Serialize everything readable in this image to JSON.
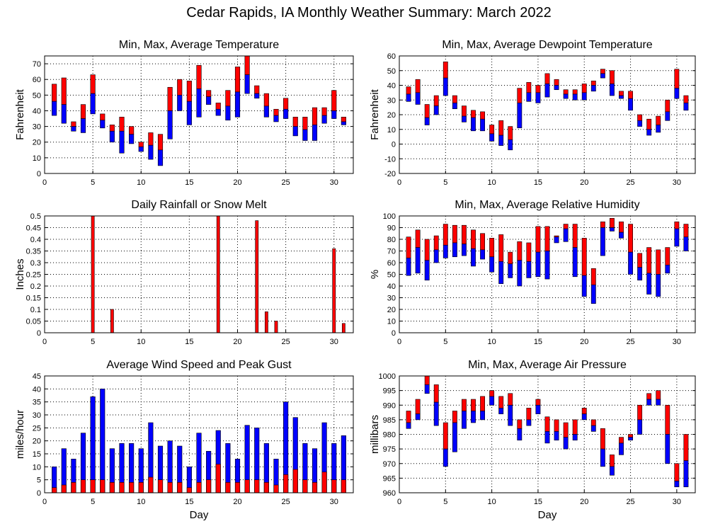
{
  "title": "Cedar Rapids, IA Monthly Weather Summary: March 2022",
  "colors": {
    "red": "#ff0000",
    "blue": "#0000ff",
    "outline": "#000000"
  },
  "chart_data": [
    {
      "id": "temperature",
      "type": "bar",
      "title": "Min, Max, Average Temperature",
      "ylabel": "Fahrenheit",
      "xlabel": "",
      "xlim": [
        0,
        32
      ],
      "xticks": [
        0,
        5,
        10,
        15,
        20,
        25,
        30
      ],
      "ylim": [
        0,
        75
      ],
      "yticks": [
        0,
        10,
        20,
        30,
        40,
        50,
        60,
        70
      ],
      "x": [
        1,
        2,
        3,
        4,
        5,
        6,
        7,
        8,
        9,
        10,
        11,
        12,
        13,
        14,
        15,
        16,
        17,
        18,
        19,
        20,
        21,
        22,
        23,
        24,
        25,
        26,
        27,
        28,
        29,
        30,
        31
      ],
      "min": [
        37,
        32,
        27,
        26,
        38,
        29,
        20,
        13,
        19,
        14,
        9,
        5,
        22,
        40,
        31,
        36,
        44,
        37,
        34,
        36,
        51,
        48,
        36,
        33,
        35,
        24,
        21,
        21,
        32,
        35,
        31
      ],
      "avg": [
        46,
        44,
        30,
        35,
        51,
        34,
        27,
        27,
        25,
        17,
        18,
        15,
        40,
        50,
        46,
        54,
        49,
        41,
        43,
        52,
        63,
        51,
        43,
        37,
        41,
        30,
        28,
        31,
        37,
        40,
        33
      ],
      "max": [
        57,
        61,
        33,
        44,
        63,
        38,
        31,
        36,
        30,
        20,
        26,
        25,
        55,
        60,
        59,
        69,
        53,
        45,
        53,
        68,
        75,
        56,
        51,
        41,
        48,
        36,
        36,
        42,
        42,
        53,
        36
      ],
      "style": "range"
    },
    {
      "id": "dewpoint",
      "type": "bar",
      "title": "Min, Max, Average Dewpoint Temperature",
      "ylabel": "Fahrenheit",
      "xlabel": "",
      "xlim": [
        0,
        32
      ],
      "xticks": [
        0,
        5,
        10,
        15,
        20,
        25,
        30
      ],
      "ylim": [
        -20,
        60
      ],
      "yticks": [
        -20,
        -10,
        0,
        10,
        20,
        30,
        40,
        50,
        60
      ],
      "x": [
        1,
        2,
        3,
        4,
        5,
        6,
        7,
        8,
        9,
        10,
        11,
        12,
        13,
        14,
        15,
        16,
        17,
        18,
        19,
        20,
        21,
        22,
        23,
        24,
        25,
        26,
        27,
        28,
        29,
        30,
        31
      ],
      "min": [
        29,
        27,
        13,
        20,
        33,
        24,
        15,
        9,
        9,
        2,
        -1,
        -4,
        11,
        29,
        28,
        32,
        37,
        31,
        30,
        30,
        36,
        45,
        33,
        31,
        23,
        12,
        6,
        8,
        16,
        31,
        23
      ],
      "avg": [
        34,
        35,
        18,
        26,
        45,
        28,
        19,
        18,
        17,
        7,
        6,
        3,
        28,
        35,
        35,
        41,
        40,
        34,
        34,
        35,
        40,
        48,
        41,
        33,
        31,
        16,
        10,
        13,
        22,
        38,
        28
      ],
      "max": [
        39,
        44,
        27,
        33,
        56,
        33,
        26,
        23,
        22,
        13,
        16,
        12,
        38,
        42,
        40,
        48,
        44,
        37,
        37,
        41,
        43,
        51,
        50,
        36,
        36,
        20,
        17,
        19,
        30,
        51,
        33
      ],
      "style": "range"
    },
    {
      "id": "rainfall",
      "type": "bar",
      "title": "Daily Rainfall or Snow Melt",
      "ylabel": "Inches",
      "xlabel": "",
      "xlim": [
        0,
        32
      ],
      "xticks": [
        0,
        5,
        10,
        15,
        20,
        25,
        30
      ],
      "ylim": [
        0,
        0.5
      ],
      "yticks": [
        0,
        0.05,
        0.1,
        0.15,
        0.2,
        0.25,
        0.3,
        0.35,
        0.4,
        0.45,
        0.5
      ],
      "ytick_labels": [
        "0",
        "0.05",
        "0.1",
        "0.15",
        "0.2",
        "0.25",
        "0.3",
        "0.35",
        "0.4",
        "0.45",
        "0.5"
      ],
      "x": [
        5,
        7,
        18,
        22,
        23,
        24,
        30,
        31
      ],
      "values": [
        0.5,
        0.1,
        0.5,
        0.48,
        0.09,
        0.05,
        0.36,
        0.04
      ],
      "style": "single"
    },
    {
      "id": "humidity",
      "type": "bar",
      "title": "Min, Max, Average Relative Humidity",
      "ylabel": "%",
      "xlabel": "",
      "xlim": [
        0,
        32
      ],
      "xticks": [
        0,
        5,
        10,
        15,
        20,
        25,
        30
      ],
      "ylim": [
        0,
        100
      ],
      "yticks": [
        0,
        10,
        20,
        30,
        40,
        50,
        60,
        70,
        80,
        90,
        100
      ],
      "x": [
        1,
        2,
        3,
        4,
        5,
        6,
        7,
        8,
        9,
        10,
        11,
        12,
        13,
        14,
        15,
        16,
        17,
        18,
        19,
        20,
        21,
        22,
        23,
        24,
        25,
        26,
        27,
        28,
        29,
        30,
        31
      ],
      "min": [
        49,
        51,
        45,
        60,
        64,
        65,
        66,
        57,
        63,
        52,
        42,
        47,
        40,
        47,
        48,
        46,
        77,
        78,
        48,
        31,
        25,
        66,
        87,
        81,
        50,
        45,
        33,
        31,
        51,
        74,
        70
      ],
      "avg": [
        64,
        73,
        62,
        71,
        75,
        77,
        76,
        72,
        71,
        65,
        61,
        59,
        62,
        61,
        69,
        70,
        82,
        89,
        73,
        49,
        41,
        90,
        90,
        86,
        69,
        56,
        51,
        50,
        58,
        89,
        82
      ],
      "max": [
        82,
        88,
        80,
        83,
        93,
        92,
        92,
        88,
        85,
        81,
        84,
        69,
        78,
        77,
        91,
        91,
        83,
        93,
        93,
        81,
        55,
        95,
        98,
        95,
        93,
        68,
        73,
        71,
        73,
        95,
        93
      ],
      "style": "range"
    },
    {
      "id": "wind",
      "type": "bar",
      "title": "Average Wind Speed and Peak Gust",
      "ylabel": "miles/hour",
      "xlabel": "Day",
      "xlim": [
        0,
        32
      ],
      "xticks": [
        0,
        5,
        10,
        15,
        20,
        25,
        30
      ],
      "ylim": [
        0,
        45
      ],
      "yticks": [
        0,
        5,
        10,
        15,
        20,
        25,
        30,
        35,
        40,
        45
      ],
      "x": [
        1,
        2,
        3,
        4,
        5,
        6,
        7,
        8,
        9,
        10,
        11,
        12,
        13,
        14,
        15,
        16,
        17,
        18,
        19,
        20,
        21,
        22,
        23,
        24,
        25,
        26,
        27,
        28,
        29,
        30,
        31
      ],
      "average": [
        2,
        3,
        4,
        5,
        5,
        5,
        4,
        4,
        4,
        4,
        6,
        5,
        4,
        4,
        2,
        4,
        5,
        11,
        4,
        4,
        5,
        5,
        4,
        3,
        7,
        9,
        5,
        4,
        8,
        5,
        5
      ],
      "gust": [
        10,
        17,
        13,
        23,
        37,
        40,
        17,
        19,
        19,
        17,
        27,
        18,
        20,
        18,
        10,
        23,
        16,
        24,
        19,
        13,
        26,
        25,
        19,
        13,
        35,
        29,
        19,
        17,
        27,
        19,
        22
      ],
      "style": "wind"
    },
    {
      "id": "pressure",
      "type": "bar",
      "title": "Min, Max, Average Air Pressure",
      "ylabel": "millibars",
      "xlabel": "Day",
      "xlim": [
        0,
        32
      ],
      "xticks": [
        0,
        5,
        10,
        15,
        20,
        25,
        30
      ],
      "ylim": [
        960,
        1000
      ],
      "yticks": [
        960,
        965,
        970,
        975,
        980,
        985,
        990,
        995,
        1000
      ],
      "x": [
        1,
        2,
        3,
        4,
        5,
        6,
        7,
        8,
        9,
        10,
        11,
        12,
        13,
        14,
        15,
        16,
        17,
        18,
        19,
        20,
        21,
        22,
        23,
        24,
        25,
        26,
        27,
        28,
        29,
        30,
        31
      ],
      "min": [
        982,
        985,
        994,
        983,
        969,
        974,
        982,
        984,
        985,
        990,
        987,
        983,
        978,
        983,
        987,
        977,
        978,
        975,
        978,
        985,
        981,
        969,
        966,
        973,
        978,
        980,
        990,
        990,
        970,
        962,
        962
      ],
      "avg": [
        984,
        987,
        997,
        991,
        975,
        984,
        988,
        988,
        988,
        993,
        989,
        990,
        982,
        985,
        990,
        981,
        981,
        979,
        980,
        987,
        983,
        975,
        969,
        977,
        979,
        985,
        992,
        992,
        980,
        964,
        971
      ],
      "max": [
        988,
        992,
        1000,
        997,
        984,
        988,
        992,
        992,
        993,
        995,
        993,
        994,
        985,
        989,
        992,
        986,
        985,
        984,
        985,
        989,
        985,
        982,
        973,
        979,
        980,
        990,
        994,
        995,
        990,
        970,
        980
      ],
      "style": "range"
    }
  ]
}
